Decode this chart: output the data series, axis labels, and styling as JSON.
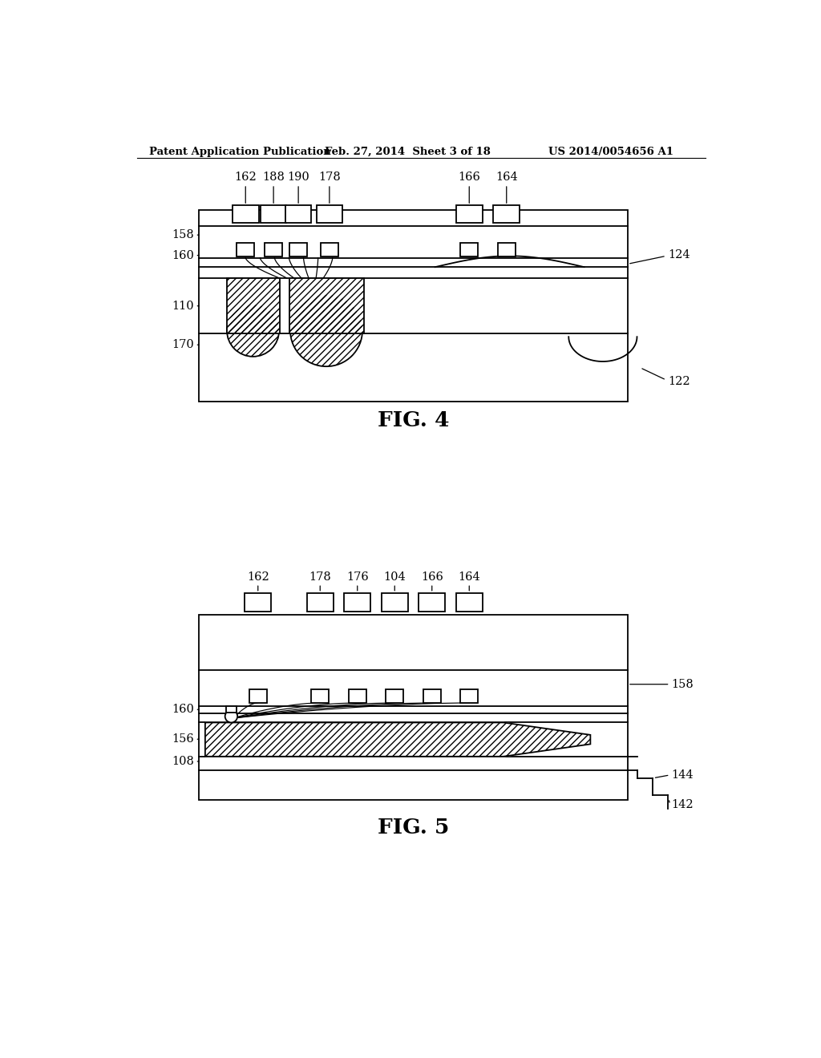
{
  "header_left": "Patent Application Publication",
  "header_mid": "Feb. 27, 2014  Sheet 3 of 18",
  "header_right": "US 2014/0054656 A1",
  "fig4_label": "FIG. 4",
  "fig5_label": "FIG. 5",
  "bg": "#ffffff",
  "lc": "#000000"
}
